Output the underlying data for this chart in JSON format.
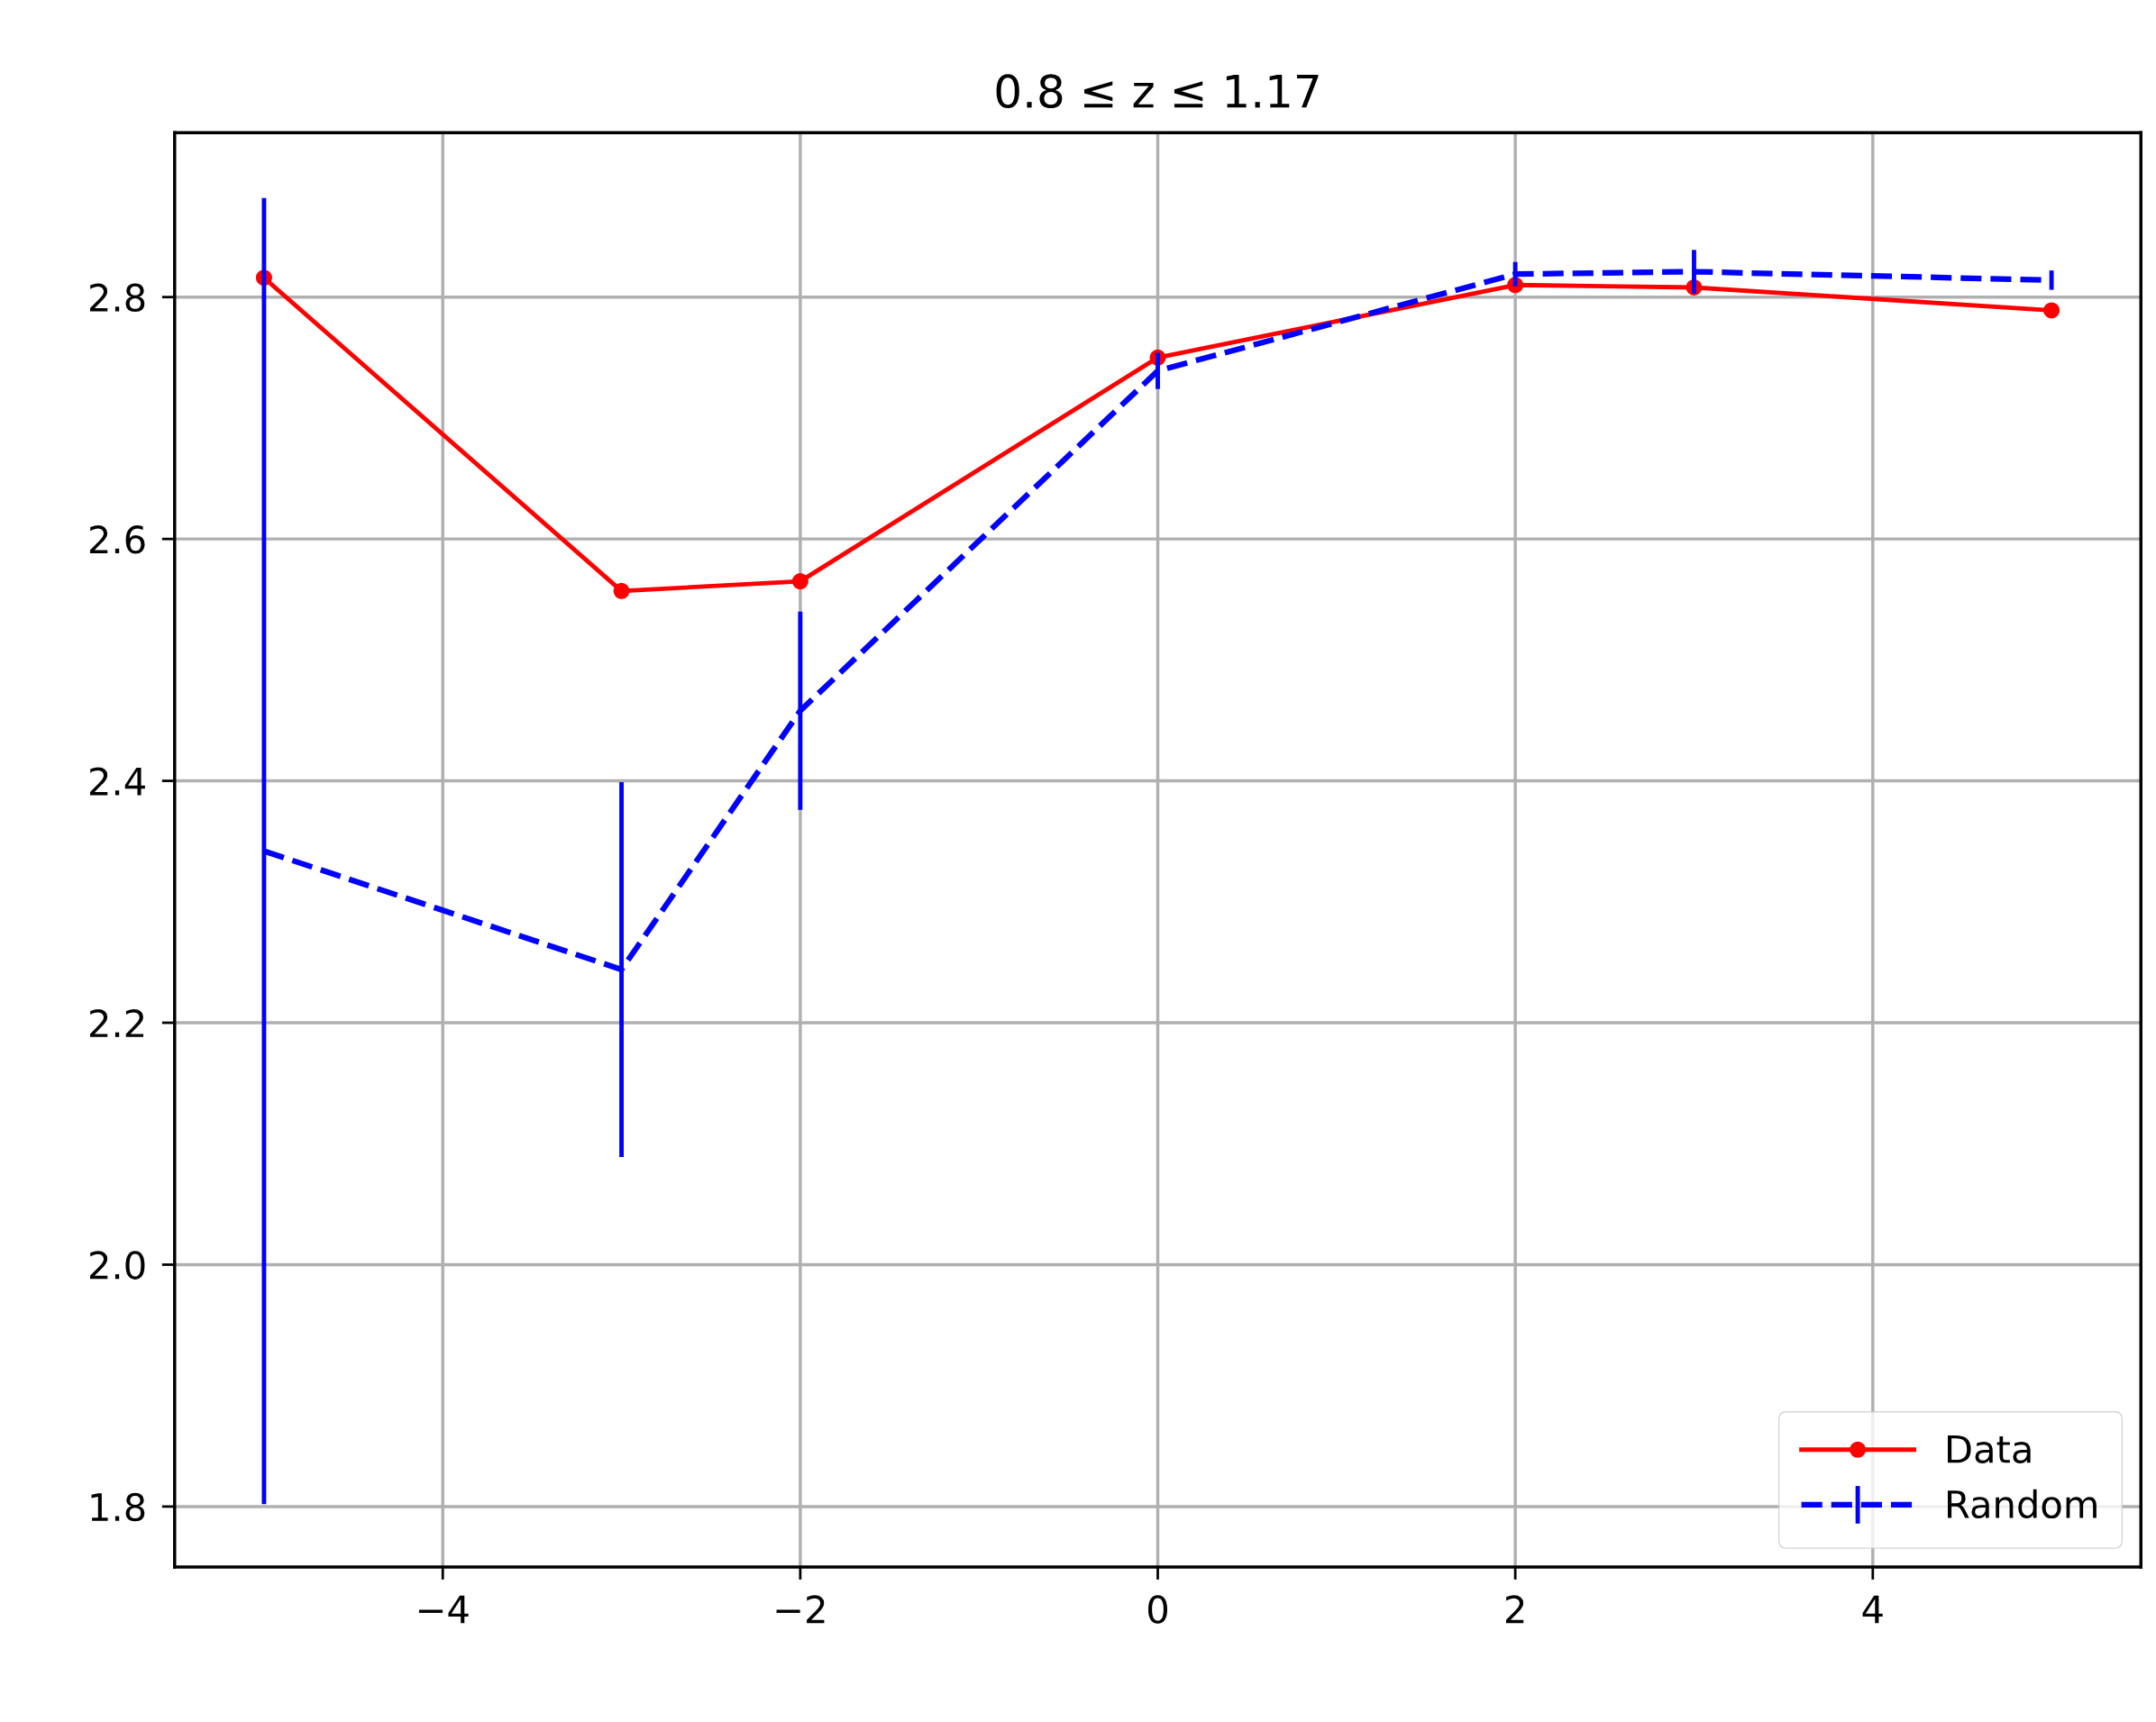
{
  "chart_data": {
    "type": "line",
    "title": "0.8 ≤ z ≤ 1.17",
    "x": [
      -5,
      -3,
      -2,
      0,
      2,
      3,
      5
    ],
    "series": [
      {
        "name": "Data",
        "color": "#ff0000",
        "marker": "circle",
        "line_style": "solid",
        "values": [
          2.816,
          2.557,
          2.565,
          2.75,
          2.81,
          2.808,
          2.789
        ]
      },
      {
        "name": "Random",
        "color": "#0000ff",
        "marker": "none",
        "line_style": "dashed",
        "values": [
          2.342,
          2.244,
          2.458,
          2.739,
          2.819,
          2.821,
          2.814
        ],
        "errors": [
          0.54,
          0.155,
          0.082,
          0.015,
          0.01,
          0.018,
          0.008
        ]
      }
    ],
    "xlim": [
      -5.5,
      5.5
    ],
    "xticks": [
      -4,
      -2,
      0,
      2,
      4
    ],
    "ylim": [
      1.75,
      2.936
    ],
    "yticks": [
      1.8,
      {
        "value": 2,
        "label": "2.0"
      },
      2.2,
      2.4,
      2.6,
      2.8
    ],
    "grid": true,
    "legend": "lower right"
  }
}
